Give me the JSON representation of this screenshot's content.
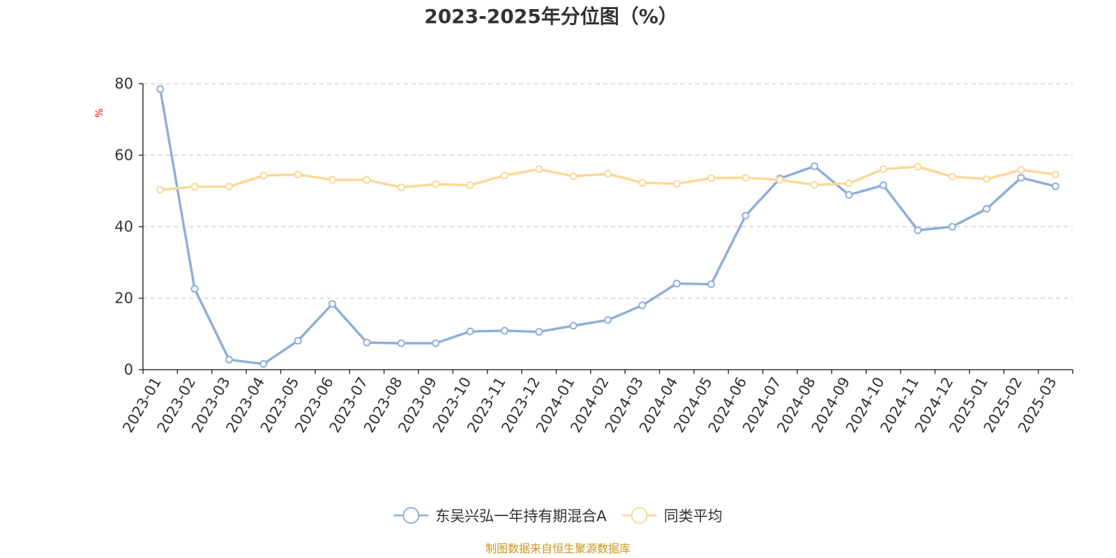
{
  "chart_data": {
    "type": "line",
    "title": "2023-2025年分位图（%）",
    "ylabel": "%",
    "xlabel": "",
    "ylim": [
      0,
      80
    ],
    "yticks": [
      "0",
      "20",
      "40",
      "60",
      "80"
    ],
    "grid": true,
    "legend_position": "bottom",
    "categories": [
      "2023-01",
      "2023-02",
      "2023-03",
      "2023-04",
      "2023-05",
      "2023-06",
      "2023-07",
      "2023-08",
      "2023-09",
      "2023-10",
      "2023-11",
      "2023-12",
      "2024-01",
      "2024-02",
      "2024-03",
      "2024-04",
      "2024-05",
      "2024-06",
      "2024-07",
      "2024-08",
      "2024-09",
      "2024-10",
      "2024-11",
      "2024-12",
      "2025-01",
      "2025-02",
      "2025-03"
    ],
    "series": [
      {
        "name": "东吴兴弘一年持有期混合A",
        "color": "#8eaedb",
        "values": [
          78.5,
          22.6,
          2.8,
          1.6,
          8.1,
          18.4,
          7.6,
          7.4,
          7.4,
          10.7,
          10.9,
          10.6,
          12.3,
          13.9,
          18.0,
          24.1,
          23.9,
          43.1,
          53.5,
          56.9,
          48.9,
          51.6,
          39.0,
          40.0,
          45.0,
          53.7,
          51.3
        ]
      },
      {
        "name": "同类平均",
        "color": "#fbd896",
        "values": [
          50.3,
          51.2,
          51.2,
          54.3,
          54.6,
          53.1,
          53.1,
          51.0,
          51.9,
          51.6,
          54.3,
          56.1,
          54.1,
          54.8,
          52.3,
          52.0,
          53.6,
          53.7,
          53.1,
          51.7,
          52.1,
          56.1,
          56.8,
          54.0,
          53.3,
          55.9,
          54.6
        ]
      }
    ]
  },
  "source_text": "制图数据来自恒生聚源数据库"
}
